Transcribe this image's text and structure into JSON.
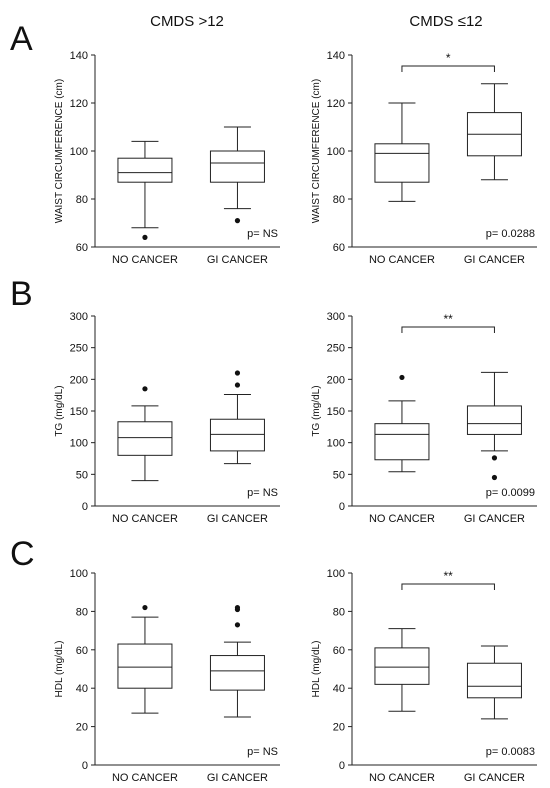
{
  "column_titles": [
    "CMDS >12",
    "CMDS ≤12"
  ],
  "row_letters": [
    "A",
    "B",
    "C"
  ],
  "chart_data": [
    {
      "type": "box",
      "row": 0,
      "col": 0,
      "ylabel": "WAIST CIRCUMFERENCE (cm)",
      "ylim": [
        60,
        140
      ],
      "yticks": [
        60,
        80,
        100,
        120,
        140
      ],
      "categories": [
        "NO CANCER",
        "GI CANCER"
      ],
      "boxes": [
        {
          "whislo": 68,
          "q1": 87,
          "med": 91,
          "q3": 97,
          "whishi": 104,
          "fliers": [
            64
          ]
        },
        {
          "whislo": 76,
          "q1": 87,
          "med": 95,
          "q3": 100,
          "whishi": 110,
          "fliers": [
            71
          ]
        }
      ],
      "pvalue": "p= NS",
      "significance": ""
    },
    {
      "type": "box",
      "row": 0,
      "col": 1,
      "ylabel": "WAIST CIRCUMFERENCE (cm)",
      "ylim": [
        60,
        140
      ],
      "yticks": [
        60,
        80,
        100,
        120,
        140
      ],
      "categories": [
        "NO CANCER",
        "GI CANCER"
      ],
      "boxes": [
        {
          "whislo": 79,
          "q1": 87,
          "med": 99,
          "q3": 103,
          "whishi": 120,
          "fliers": []
        },
        {
          "whislo": 88,
          "q1": 98,
          "med": 107,
          "q3": 116,
          "whishi": 128,
          "fliers": []
        }
      ],
      "pvalue": "p= 0.0288",
      "significance": "*"
    },
    {
      "type": "box",
      "row": 1,
      "col": 0,
      "ylabel": "TG (mg/dL)",
      "ylim": [
        0,
        300
      ],
      "yticks": [
        0,
        50,
        100,
        150,
        200,
        250,
        300
      ],
      "categories": [
        "NO CANCER",
        "GI CANCER"
      ],
      "boxes": [
        {
          "whislo": 40,
          "q1": 80,
          "med": 108,
          "q3": 133,
          "whishi": 158,
          "fliers": [
            185
          ]
        },
        {
          "whislo": 67,
          "q1": 87,
          "med": 113,
          "q3": 137,
          "whishi": 176,
          "fliers": [
            191,
            210
          ]
        }
      ],
      "pvalue": "p= NS",
      "significance": ""
    },
    {
      "type": "box",
      "row": 1,
      "col": 1,
      "ylabel": "TG (mg/dL)",
      "ylim": [
        0,
        300
      ],
      "yticks": [
        0,
        50,
        100,
        150,
        200,
        250,
        300
      ],
      "categories": [
        "NO CANCER",
        "GI CANCER"
      ],
      "boxes": [
        {
          "whislo": 54,
          "q1": 73,
          "med": 113,
          "q3": 130,
          "whishi": 166,
          "fliers": [
            203
          ]
        },
        {
          "whislo": 87,
          "q1": 113,
          "med": 130,
          "q3": 158,
          "whishi": 211,
          "fliers": [
            76,
            45
          ]
        }
      ],
      "pvalue": "p= 0.0099",
      "significance": "**"
    },
    {
      "type": "box",
      "row": 2,
      "col": 0,
      "ylabel": "HDL (mg/dL)",
      "ylim": [
        0,
        100
      ],
      "yticks": [
        0,
        20,
        40,
        60,
        80,
        100
      ],
      "categories": [
        "NO CANCER",
        "GI CANCER"
      ],
      "boxes": [
        {
          "whislo": 27,
          "q1": 40,
          "med": 51,
          "q3": 63,
          "whishi": 77,
          "fliers": [
            82
          ]
        },
        {
          "whislo": 25,
          "q1": 39,
          "med": 49,
          "q3": 57,
          "whishi": 64,
          "fliers": [
            73,
            81,
            82
          ]
        }
      ],
      "pvalue": "p= NS",
      "significance": ""
    },
    {
      "type": "box",
      "row": 2,
      "col": 1,
      "ylabel": "HDL (mg/dL)",
      "ylim": [
        0,
        100
      ],
      "yticks": [
        0,
        20,
        40,
        60,
        80,
        100
      ],
      "categories": [
        "NO CANCER",
        "GI CANCER"
      ],
      "boxes": [
        {
          "whislo": 28,
          "q1": 42,
          "med": 51,
          "q3": 61,
          "whishi": 71,
          "fliers": []
        },
        {
          "whislo": 24,
          "q1": 35,
          "med": 41,
          "q3": 53,
          "whishi": 62,
          "fliers": []
        }
      ],
      "pvalue": "p= 0.0083",
      "significance": "**"
    }
  ]
}
